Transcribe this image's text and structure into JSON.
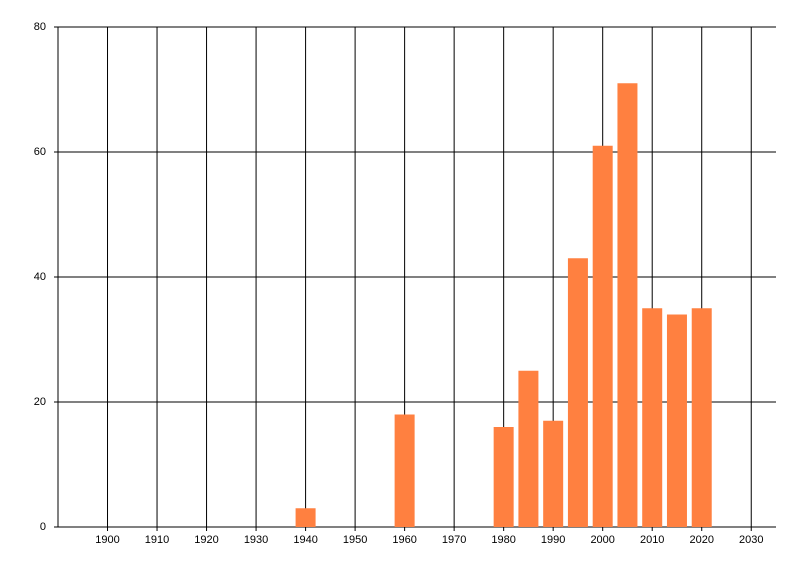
{
  "chart_data": {
    "type": "bar",
    "x": [
      1940,
      1960,
      1980,
      1985,
      1990,
      1995,
      2000,
      2005,
      2010,
      2015,
      2020
    ],
    "values": [
      3,
      18,
      16,
      25,
      17,
      43,
      61,
      71,
      35,
      34,
      35
    ],
    "color": "#ff8040",
    "xlim": [
      1890,
      2035
    ],
    "xticks": [
      1900,
      1910,
      1920,
      1930,
      1940,
      1950,
      1960,
      1970,
      1980,
      1990,
      2000,
      2010,
      2020,
      2030
    ],
    "ylim": [
      0,
      80
    ],
    "yticks": [
      0,
      20,
      40,
      60,
      80
    ],
    "grid": true
  }
}
